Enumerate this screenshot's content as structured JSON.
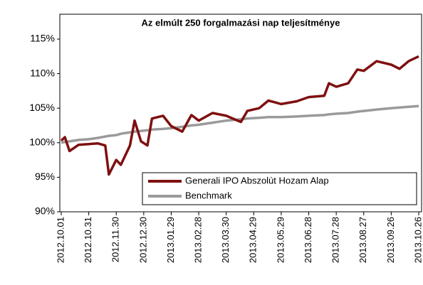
{
  "chart_data": {
    "type": "line",
    "title": "Az elmúlt 250 forgalmazási nap teljesítménye",
    "x": [
      "2012.10.01",
      "2012.10.05",
      "2012.10.10",
      "2012.10.20",
      "2012.10.31",
      "2012.11.10",
      "2012.11.18",
      "2012.11.22",
      "2012.11.30",
      "2012.12.05",
      "2012.12.15",
      "2012.12.20",
      "2012.12.27",
      "2013.01.03",
      "2013.01.08",
      "2013.01.20",
      "2013.01.29",
      "2013.02.10",
      "2013.02.20",
      "2013.02.28",
      "2013.03.15",
      "2013.03.30",
      "2013.04.15",
      "2013.04.22",
      "2013.05.05",
      "2013.05.15",
      "2013.05.29",
      "2013.06.15",
      "2013.06.28",
      "2013.07.15",
      "2013.07.20",
      "2013.07.28",
      "2013.08.10",
      "2013.08.20",
      "2013.08.27",
      "2013.09.10",
      "2013.09.26",
      "2013.10.05",
      "2013.10.15",
      "2013.10.26"
    ],
    "series": [
      {
        "name": "Generali IPO Abszolút Hozam Alap",
        "color": "#7f1010",
        "values": [
          100.3,
          100.8,
          98.8,
          99.7,
          99.8,
          99.9,
          99.6,
          95.4,
          97.5,
          96.8,
          99.6,
          103.2,
          100.2,
          99.6,
          103.5,
          103.9,
          102.4,
          101.6,
          104.0,
          103.2,
          104.3,
          103.9,
          103.0,
          104.6,
          105.0,
          106.1,
          105.6,
          106.0,
          106.6,
          106.8,
          108.6,
          108.1,
          108.6,
          110.6,
          110.4,
          111.8,
          111.3,
          110.7,
          111.8,
          112.5
        ]
      },
      {
        "name": "Benchmark",
        "color": "#9a9a9a",
        "values": [
          100.0,
          100.1,
          100.2,
          100.4,
          100.5,
          100.7,
          100.9,
          101.0,
          101.1,
          101.3,
          101.5,
          101.6,
          101.7,
          101.8,
          101.9,
          102.0,
          102.1,
          102.3,
          102.5,
          102.6,
          102.9,
          103.2,
          103.4,
          103.5,
          103.6,
          103.7,
          103.7,
          103.8,
          103.9,
          104.0,
          104.1,
          104.2,
          104.3,
          104.5,
          104.6,
          104.8,
          105.0,
          105.1,
          105.2,
          105.3
        ]
      }
    ],
    "xlim": [
      "2012.10.01",
      "2013.10.26"
    ],
    "xticks": [
      "2012.10.01",
      "2012.10.31",
      "2012.11.30",
      "2012.12.30",
      "2013.01.29",
      "2013.02.28",
      "2013.03.30",
      "2013.04.29",
      "2013.05.29",
      "2013.06.28",
      "2013.07.28",
      "2013.08.27",
      "2013.09.26",
      "2013.10.26"
    ],
    "ylim": [
      90,
      115
    ],
    "yticks": [
      {
        "value": 90,
        "label": "90%"
      },
      {
        "value": 95,
        "label": "95%"
      },
      {
        "value": 100,
        "label": "100%"
      },
      {
        "value": 105,
        "label": "105%"
      },
      {
        "value": 110,
        "label": "110%"
      },
      {
        "value": 115,
        "label": "115%"
      }
    ],
    "grid": false,
    "legend": "lower right"
  }
}
